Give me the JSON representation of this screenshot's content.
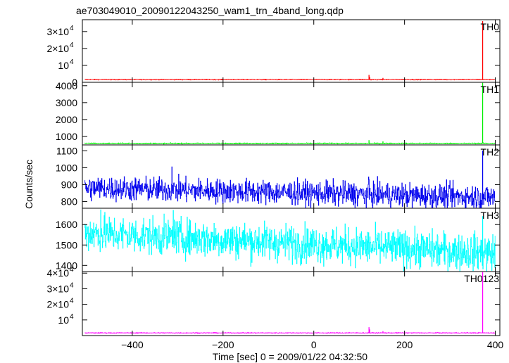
{
  "chart_data": {
    "type": "line",
    "title": "ae703049010_20090122043250_wam1_trn_4band_long.qdp",
    "xlabel": "Time [sec] 0 = 2009/01/22 04:32:50",
    "ylabel": "Counts/sec",
    "xlim": [
      -510,
      410
    ],
    "xticks": [
      {
        "value": -400,
        "label": "−400"
      },
      {
        "value": -200,
        "label": "−200"
      },
      {
        "value": 0,
        "label": "0"
      },
      {
        "value": 200,
        "label": "200"
      },
      {
        "value": 400,
        "label": "400"
      }
    ],
    "grid": false,
    "panels": [
      {
        "name": "TH0",
        "color": "#ff0000",
        "ylim": [
          0,
          37000
        ],
        "baseline": 1600,
        "noise": 120,
        "trend": 0,
        "features": [
          {
            "x": 78,
            "y": 1900
          },
          {
            "x": 121,
            "y": 4200
          },
          {
            "x": 123,
            "y": 3000
          },
          {
            "x": 152,
            "y": 2400
          },
          {
            "x": 372,
            "y": 36000
          }
        ],
        "yticks": [
          {
            "value": 0,
            "label": "0"
          },
          {
            "value": 10000,
            "label": "10",
            "exp": "4"
          },
          {
            "value": 20000,
            "label": "2×10",
            "exp": "4"
          },
          {
            "value": 30000,
            "label": "3×10",
            "exp": "4"
          }
        ]
      },
      {
        "name": "TH1",
        "color": "#00ee00",
        "ylim": [
          500,
          4200
        ],
        "baseline": 590,
        "noise": 15,
        "trend": 0,
        "features": [
          {
            "x": 121,
            "y": 760
          },
          {
            "x": 152,
            "y": 690
          },
          {
            "x": 372,
            "y": 4150
          }
        ],
        "yticks": [
          {
            "value": 1000,
            "label": "1000"
          },
          {
            "value": 2000,
            "label": "2000"
          },
          {
            "value": 3000,
            "label": "3000"
          },
          {
            "value": 4000,
            "label": "4000"
          }
        ]
      },
      {
        "name": "TH2",
        "color": "#0000ee",
        "ylim": [
          760,
          1135
        ],
        "baseline": 880,
        "noise": 36,
        "trend": -55,
        "features": [
          {
            "x": -313,
            "y": 1005
          },
          {
            "x": 121,
            "y": 930
          },
          {
            "x": 372,
            "y": 1100
          }
        ],
        "yticks": [
          {
            "value": 800,
            "label": "800"
          },
          {
            "value": 900,
            "label": "900"
          },
          {
            "value": 1000,
            "label": "1000"
          },
          {
            "value": 1100,
            "label": "1100"
          }
        ]
      },
      {
        "name": "TH3",
        "color": "#00ffff",
        "ylim": [
          1370,
          1680
        ],
        "baseline": 1560,
        "noise": 45,
        "trend": -100,
        "features": [
          {
            "x": -470,
            "y": 1672
          },
          {
            "x": -310,
            "y": 1670
          },
          {
            "x": 372,
            "y": 1640
          }
        ],
        "yticks": [
          {
            "value": 1400,
            "label": "1400"
          },
          {
            "value": 1500,
            "label": "1500"
          },
          {
            "value": 1600,
            "label": "1600"
          }
        ]
      },
      {
        "name": "TH0123",
        "color": "#ff00ff",
        "ylim": [
          0,
          41000
        ],
        "baseline": 1700,
        "noise": 140,
        "trend": 0,
        "features": [
          {
            "x": 78,
            "y": 2100
          },
          {
            "x": 121,
            "y": 5200
          },
          {
            "x": 123,
            "y": 3800
          },
          {
            "x": 152,
            "y": 2600
          },
          {
            "x": 372,
            "y": 40500
          }
        ],
        "yticks": [
          {
            "value": 10000,
            "label": "10",
            "exp": "4"
          },
          {
            "value": 20000,
            "label": "2×10",
            "exp": "4"
          },
          {
            "value": 30000,
            "label": "3×10",
            "exp": "4"
          },
          {
            "value": 40000,
            "label": "4×10",
            "exp": "4"
          }
        ]
      }
    ]
  }
}
